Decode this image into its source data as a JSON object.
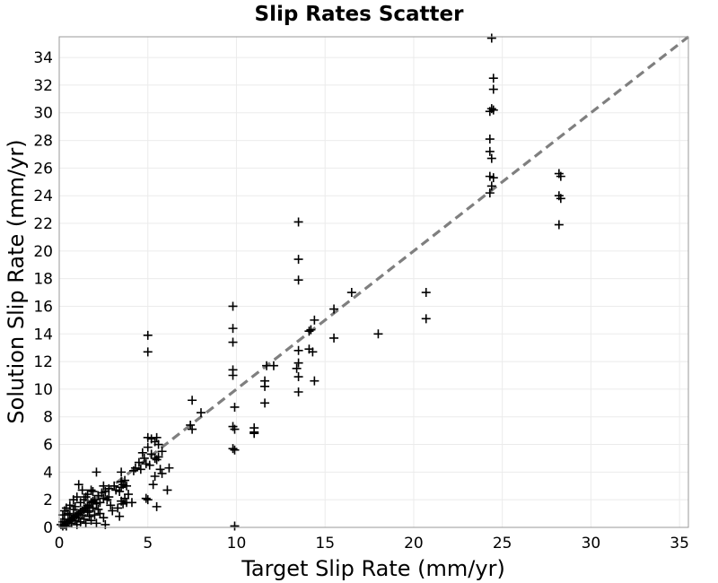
{
  "chart_data": {
    "type": "scatter",
    "title": "Slip Rates Scatter",
    "xlabel": "Target Slip Rate (mm/yr)",
    "ylabel": "Solution Slip Rate (mm/yr)",
    "xlim": [
      0,
      35.5
    ],
    "ylim": [
      0,
      35.5
    ],
    "x_ticks": [
      0,
      5,
      10,
      15,
      20,
      25,
      30,
      35
    ],
    "y_ticks": [
      0,
      2,
      4,
      6,
      8,
      10,
      12,
      14,
      16,
      18,
      20,
      22,
      24,
      26,
      28,
      30,
      32,
      34
    ],
    "grid": true,
    "marker": "+",
    "reference_line": "y = x",
    "colors": {
      "points": "#000000",
      "reference_line": "#7f7f7f",
      "grid": "#ebebeb",
      "frame": "#9a9a9a"
    },
    "points": [
      [
        24.4,
        35.4
      ],
      [
        24.5,
        32.5
      ],
      [
        24.5,
        31.7
      ],
      [
        24.4,
        30.3
      ],
      [
        24.5,
        30.2
      ],
      [
        24.3,
        30.1
      ],
      [
        24.3,
        28.1
      ],
      [
        24.3,
        27.2
      ],
      [
        24.4,
        26.7
      ],
      [
        24.3,
        25.4
      ],
      [
        24.5,
        25.3
      ],
      [
        24.4,
        24.7
      ],
      [
        24.3,
        24.2
      ],
      [
        28.2,
        25.6
      ],
      [
        28.3,
        25.4
      ],
      [
        28.2,
        24.0
      ],
      [
        28.3,
        23.8
      ],
      [
        28.2,
        21.9
      ],
      [
        13.5,
        22.1
      ],
      [
        13.5,
        19.4
      ],
      [
        13.5,
        17.9
      ],
      [
        16.5,
        17.0
      ],
      [
        20.7,
        17.0
      ],
      [
        20.7,
        15.1
      ],
      [
        15.5,
        15.8
      ],
      [
        14.4,
        15.0
      ],
      [
        14.2,
        14.3
      ],
      [
        14.1,
        14.2
      ],
      [
        18.0,
        14.0
      ],
      [
        15.5,
        13.7
      ],
      [
        14.1,
        12.9
      ],
      [
        14.3,
        12.7
      ],
      [
        13.5,
        12.8
      ],
      [
        13.5,
        11.9
      ],
      [
        13.4,
        11.5
      ],
      [
        13.5,
        10.9
      ],
      [
        14.4,
        10.6
      ],
      [
        13.5,
        9.8
      ],
      [
        11.7,
        11.7
      ],
      [
        12.1,
        11.7
      ],
      [
        11.6,
        10.6
      ],
      [
        11.6,
        10.2
      ],
      [
        11.6,
        9.0
      ],
      [
        9.8,
        16.0
      ],
      [
        9.8,
        14.4
      ],
      [
        9.8,
        13.4
      ],
      [
        9.8,
        11.4
      ],
      [
        9.8,
        11.0
      ],
      [
        9.9,
        8.7
      ],
      [
        9.8,
        7.3
      ],
      [
        9.9,
        7.1
      ],
      [
        9.8,
        5.7
      ],
      [
        9.9,
        5.6
      ],
      [
        9.9,
        0.1
      ],
      [
        11.0,
        7.2
      ],
      [
        11.0,
        6.9
      ],
      [
        11.0,
        6.8
      ],
      [
        7.5,
        9.2
      ],
      [
        8.0,
        8.3
      ],
      [
        7.4,
        7.4
      ],
      [
        7.5,
        7.1
      ],
      [
        5.0,
        13.9
      ],
      [
        5.0,
        12.7
      ],
      [
        5.0,
        6.5
      ],
      [
        5.2,
        6.4
      ],
      [
        5.5,
        6.5
      ],
      [
        5.4,
        6.2
      ],
      [
        5.6,
        6.0
      ],
      [
        5.8,
        5.5
      ],
      [
        5.0,
        5.8
      ],
      [
        5.2,
        5.3
      ],
      [
        5.4,
        5.0
      ],
      [
        5.5,
        4.9
      ],
      [
        5.6,
        5.1
      ],
      [
        4.7,
        5.4
      ],
      [
        4.8,
        5.0
      ],
      [
        4.5,
        4.7
      ],
      [
        4.9,
        4.6
      ],
      [
        5.1,
        4.5
      ],
      [
        4.3,
        4.3
      ],
      [
        4.6,
        4.2
      ],
      [
        4.2,
        4.1
      ],
      [
        5.7,
        4.2
      ],
      [
        5.8,
        3.9
      ],
      [
        6.2,
        4.3
      ],
      [
        5.4,
        3.7
      ],
      [
        5.3,
        3.1
      ],
      [
        6.1,
        2.7
      ],
      [
        5.0,
        2.0
      ],
      [
        4.9,
        2.1
      ],
      [
        5.5,
        1.5
      ],
      [
        3.5,
        4.0
      ],
      [
        3.7,
        3.4
      ],
      [
        3.5,
        3.3
      ],
      [
        3.6,
        3.1
      ],
      [
        3.8,
        3.0
      ],
      [
        3.5,
        2.9
      ],
      [
        3.4,
        2.6
      ],
      [
        3.9,
        2.4
      ],
      [
        3.7,
        2.1
      ],
      [
        3.5,
        1.9
      ],
      [
        3.8,
        1.8
      ],
      [
        4.1,
        1.8
      ],
      [
        3.6,
        1.7
      ],
      [
        3.3,
        1.4
      ],
      [
        3.4,
        0.8
      ],
      [
        3.1,
        3.0
      ],
      [
        2.8,
        2.8
      ],
      [
        2.6,
        2.6
      ],
      [
        2.4,
        2.5
      ],
      [
        2.2,
        2.3
      ],
      [
        2.5,
        2.1
      ],
      [
        2.7,
        2.0
      ],
      [
        2.3,
        1.8
      ],
      [
        2.0,
        2.0
      ],
      [
        1.9,
        1.9
      ],
      [
        1.8,
        1.8
      ],
      [
        2.1,
        1.7
      ],
      [
        1.6,
        1.6
      ],
      [
        1.7,
        1.5
      ],
      [
        1.9,
        1.4
      ],
      [
        1.5,
        1.4
      ],
      [
        2.2,
        1.3
      ],
      [
        1.4,
        1.3
      ],
      [
        1.3,
        1.2
      ],
      [
        1.2,
        1.1
      ],
      [
        1.6,
        1.1
      ],
      [
        1.1,
        1.0
      ],
      [
        1.0,
        0.9
      ],
      [
        1.3,
        0.9
      ],
      [
        0.9,
        0.8
      ],
      [
        1.7,
        0.8
      ],
      [
        0.8,
        0.7
      ],
      [
        1.1,
        0.7
      ],
      [
        0.7,
        0.6
      ],
      [
        1.4,
        0.6
      ],
      [
        0.6,
        0.5
      ],
      [
        0.9,
        0.5
      ],
      [
        0.5,
        0.4
      ],
      [
        1.2,
        0.4
      ],
      [
        0.4,
        0.3
      ],
      [
        0.7,
        0.3
      ],
      [
        0.3,
        0.2
      ],
      [
        0.2,
        0.1
      ],
      [
        1.0,
        0.2
      ],
      [
        2.6,
        0.2
      ],
      [
        2.1,
        0.3
      ],
      [
        1.8,
        0.5
      ],
      [
        2.5,
        0.7
      ],
      [
        3.0,
        1.2
      ],
      [
        2.9,
        1.6
      ],
      [
        2.8,
        2.2
      ],
      [
        3.2,
        2.7
      ],
      [
        1.1,
        3.1
      ],
      [
        1.3,
        2.7
      ],
      [
        1.0,
        2.2
      ],
      [
        0.8,
        2.0
      ],
      [
        1.5,
        2.2
      ],
      [
        2.1,
        4.0
      ],
      [
        2.5,
        3.0
      ],
      [
        1.8,
        2.7
      ],
      [
        0.3,
        1.2
      ],
      [
        0.5,
        1.0
      ],
      [
        0.2,
        0.9
      ],
      [
        0.4,
        1.4
      ],
      [
        0.6,
        1.6
      ],
      [
        0.8,
        1.3
      ],
      [
        1.2,
        1.8
      ],
      [
        1.4,
        2.0
      ],
      [
        1.6,
        2.4
      ],
      [
        1.9,
        2.6
      ],
      [
        2.3,
        1.0
      ],
      [
        2.0,
        0.9
      ],
      [
        1.7,
        1.2
      ],
      [
        0.9,
        1.5
      ],
      [
        0.6,
        0.9
      ],
      [
        0.3,
        0.6
      ],
      [
        1.5,
        0.3
      ],
      [
        0.2,
        0.4
      ],
      [
        0.1,
        0.2
      ],
      [
        0.4,
        0.1
      ]
    ]
  }
}
